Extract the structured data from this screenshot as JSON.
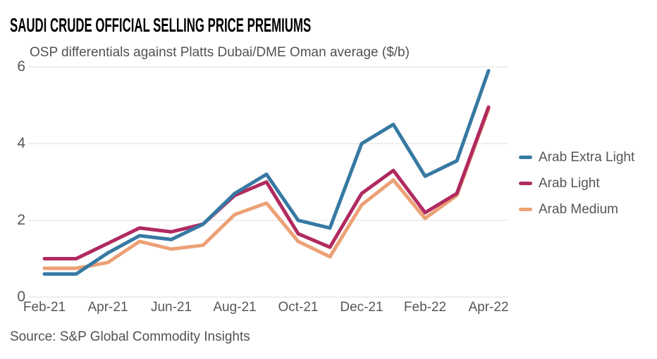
{
  "header": {
    "title": "SAUDI CRUDE OFFICIAL SELLING PRICE PREMIUMS",
    "subtitle": "OSP differentials against Platts Dubai/DME Oman average ($/b)"
  },
  "footer": {
    "source": "Source: S&P Global Commodity Insights"
  },
  "colors": {
    "background": "#FFFFFF",
    "grid": "#DDDDDD",
    "title_text": "#000000",
    "axis_text": "#54575A",
    "secondary_text": "#4F5254"
  },
  "chart_data": {
    "type": "line",
    "title": "SAUDI CRUDE OFFICIAL SELLING PRICE PREMIUMS",
    "subtitle": "OSP differentials against Platts Dubai/DME Oman average ($/b)",
    "xlabel": "",
    "ylabel": "$/b",
    "x": [
      "Feb-21",
      "Mar-21",
      "Apr-21",
      "May-21",
      "Jun-21",
      "Jul-21",
      "Aug-21",
      "Sep-21",
      "Oct-21",
      "Nov-21",
      "Dec-21",
      "Jan-22",
      "Feb-22",
      "Mar-22",
      "Apr-22"
    ],
    "x_ticks": [
      {
        "index": 0,
        "label": "Feb-21"
      },
      {
        "index": 2,
        "label": "Apr-21"
      },
      {
        "index": 4,
        "label": "Jun-21"
      },
      {
        "index": 6,
        "label": "Aug-21"
      },
      {
        "index": 8,
        "label": "Oct-21"
      },
      {
        "index": 10,
        "label": "Dec-21"
      },
      {
        "index": 12,
        "label": "Feb-22"
      },
      {
        "index": 14,
        "label": "Apr-22"
      }
    ],
    "y_ticks": [
      0,
      2,
      4,
      6
    ],
    "ylim": [
      0,
      6
    ],
    "grid": "horizontal",
    "legend_position": "right",
    "series": [
      {
        "name": "Arab Extra Light",
        "color": "#3679A3",
        "values": [
          0.6,
          0.6,
          1.15,
          1.6,
          1.5,
          1.9,
          2.7,
          3.2,
          2.0,
          1.8,
          4.0,
          4.5,
          3.15,
          3.55,
          5.9
        ]
      },
      {
        "name": "Arab Light",
        "color": "#B02A60",
        "values": [
          1.0,
          1.0,
          1.4,
          1.8,
          1.7,
          1.9,
          2.65,
          3.0,
          1.65,
          1.3,
          2.7,
          3.3,
          2.2,
          2.7,
          4.95
        ]
      },
      {
        "name": "Arab Medium",
        "color": "#ECA176",
        "values": [
          0.75,
          0.75,
          0.9,
          1.45,
          1.25,
          1.35,
          2.15,
          2.45,
          1.45,
          1.05,
          2.4,
          3.05,
          2.05,
          2.65,
          4.9
        ]
      }
    ]
  }
}
